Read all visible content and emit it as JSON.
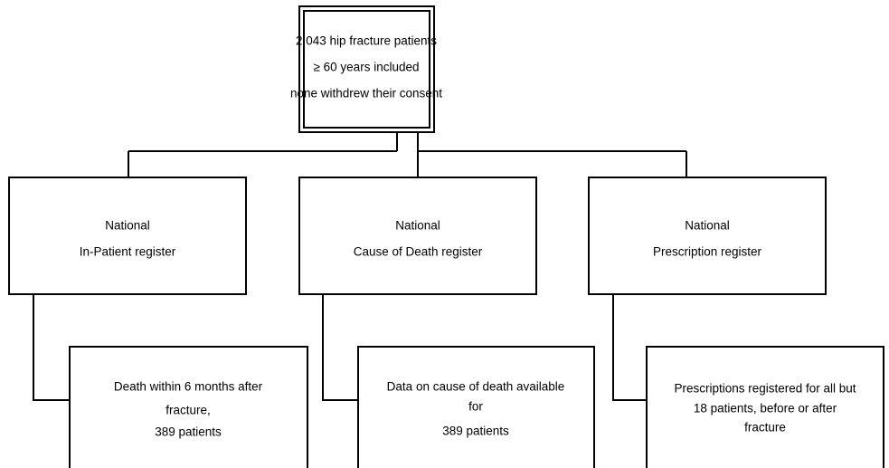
{
  "nodes": [
    {
      "lines": [
        "2,043 hip fracture patients",
        "≥ 60 years included",
        "none withdrew their consent"
      ]
    },
    {
      "lines": [
        "National",
        "In-Patient register"
      ]
    },
    {
      "lines": [
        "National",
        "Cause of Death register"
      ]
    },
    {
      "lines": [
        "National",
        "Prescription register"
      ]
    },
    {
      "lines": [
        "Death within 6 months after",
        "fracture,",
        "389 patients"
      ]
    },
    {
      "lines": [
        "Data on cause of death available",
        "for",
        "389 patients"
      ]
    },
    {
      "lines": [
        "Prescriptions registered for all but",
        "18 patients, before or after",
        "fracture"
      ]
    }
  ]
}
